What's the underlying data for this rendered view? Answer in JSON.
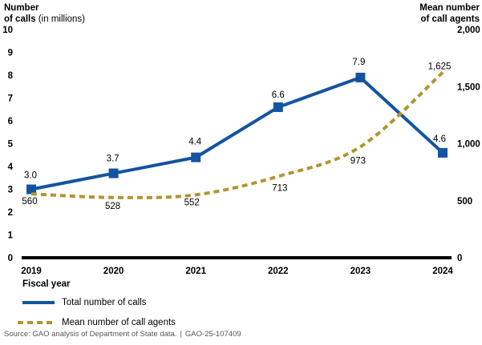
{
  "left_axis_title": {
    "line1": "Number",
    "line2_bold": "of calls",
    "line2_regular": "(in millions)"
  },
  "right_axis_title": {
    "line1": "Mean number",
    "line2": "of call agents"
  },
  "x_axis_label": "Fiscal year",
  "source": {
    "prefix": "Source: GAO analysis of Department of State data.",
    "separator": "|",
    "id": "GAO-25-107409"
  },
  "chart_data": {
    "type": "line",
    "x": [
      "2019",
      "2020",
      "2021",
      "2022",
      "2023",
      "2024"
    ],
    "xlabel": "Fiscal year",
    "grid": false,
    "legend_position": "bottom-left",
    "left_axis": {
      "label": "Number of calls (in millions)",
      "range": [
        0,
        10
      ],
      "tick_values": [
        0,
        1,
        2,
        3,
        4,
        5,
        6,
        7,
        8,
        9,
        10
      ],
      "tick_labels": [
        "0",
        "1",
        "2",
        "3",
        "4",
        "5",
        "6",
        "7",
        "8",
        "9",
        "10"
      ]
    },
    "right_axis": {
      "label": "Mean number of call agents",
      "range": [
        0,
        2000
      ],
      "tick_values": [
        0,
        500,
        1000,
        1500,
        2000
      ],
      "tick_labels": [
        "0",
        "500",
        "1,000",
        "1,500",
        "2,000"
      ]
    },
    "series": [
      {
        "name": "Total number of calls",
        "axis": "left",
        "style": "solid",
        "marker": "square",
        "color": "#13549f",
        "values": [
          3.0,
          3.7,
          4.4,
          6.6,
          7.9,
          4.6
        ],
        "point_labels": [
          "3.0",
          "3.7",
          "4.4",
          "6.6",
          "7.9",
          "4.6"
        ]
      },
      {
        "name": "Mean number of call agents",
        "axis": "right",
        "style": "dashed",
        "marker": "none",
        "color": "#b39430",
        "values": [
          560,
          528,
          552,
          713,
          973,
          1625
        ],
        "point_labels": [
          "560",
          "528",
          "552",
          "713",
          "973",
          "1,625"
        ]
      }
    ]
  }
}
